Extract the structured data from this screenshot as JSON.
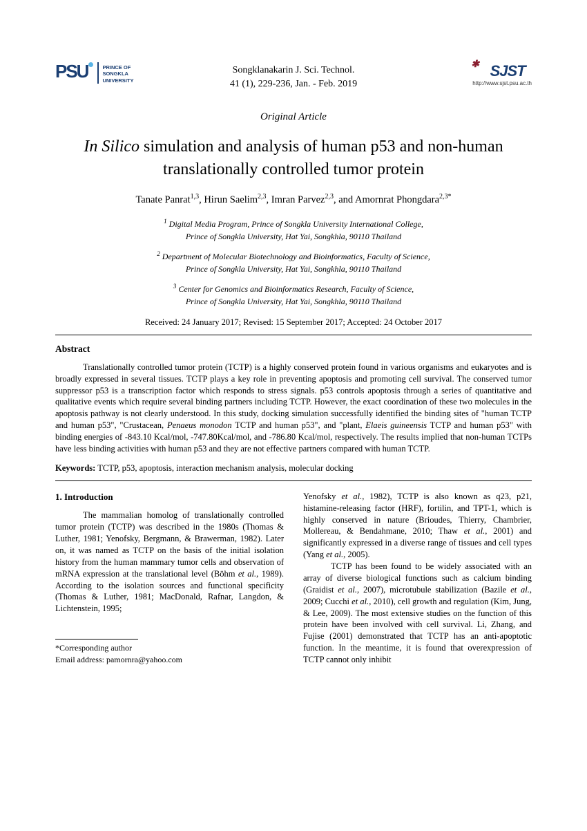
{
  "header": {
    "psu_label_1": "PRINCE OF",
    "psu_label_2": "SONGKLA",
    "psu_label_3": "UNIVERSITY",
    "journal_line1": "Songklanakarin J. Sci. Technol.",
    "journal_line2": "41 (1), 229-236, Jan. - Feb. 2019",
    "sjst_text": "SJST",
    "sjst_url": "http://www.sjst.psu.ac.th"
  },
  "article_type": "Original Article",
  "title_italic": "In Silico",
  "title_rest": " simulation and analysis of human p53 and non-human translationally controlled tumor protein",
  "authors_html": "Tanate Panrat<sup>1,3</sup>, Hirun Saelim<sup>2,3</sup>, Imran Parvez<sup>2,3</sup>, and Amornrat Phongdara<sup>2,3*</sup>",
  "affiliations": [
    {
      "sup": "1",
      "lines": [
        "Digital Media Program, Prince of Songkla University International College,",
        "Prince of Songkla University, Hat Yai, Songkhla, 90110 Thailand"
      ]
    },
    {
      "sup": "2",
      "lines": [
        "Department of Molecular Biotechnology and Bioinformatics, Faculty of Science,",
        "Prince of Songkla University, Hat Yai, Songkhla, 90110 Thailand"
      ]
    },
    {
      "sup": "3",
      "lines": [
        "Center for Genomics and Bioinformatics Research, Faculty of Science,",
        "Prince of Songkla University, Hat Yai, Songkhla, 90110 Thailand"
      ]
    }
  ],
  "dates": "Received: 24 January 2017; Revised: 15 September 2017; Accepted: 24 October 2017",
  "abstract_heading": "Abstract",
  "abstract_text": "Translationally controlled tumor protein (TCTP) is a highly conserved protein found in various organisms and eukaryotes and is broadly expressed in several tissues. TCTP plays a key role in preventing apoptosis and promoting cell survival. The conserved tumor suppressor p53 is a transcription factor which responds to stress signals. p53 controls apoptosis through a series of quantitative and qualitative events which require several binding partners including TCTP. However, the exact coordination of these two molecules in the apoptosis pathway is not clearly understood. In this study, docking simulation successfully identified the binding sites of \"human TCTP and human p53\", \"Crustacean, Penaeus monodon TCTP and human p53\", and \"plant, Elaeis guineensis TCTP and human p53\" with binding energies of -843.10 Kcal/mol, -747.80Kcal/mol, and -786.80 Kcal/mol, respectively. The results implied that non-human TCTPs have less binding activities with human p53 and they are not effective partners compared with human TCTP.",
  "keywords_label": "Keywords:",
  "keywords_text": " TCTP, p53, apoptosis, interaction mechanism analysis, molecular docking",
  "intro_heading": "1. Introduction",
  "intro_col1": "The mammalian homolog of translationally controlled tumor protein (TCTP) was described in the 1980s (Thomas & Luther, 1981; Yenofsky, Bergmann, & Brawerman, 1982). Later on, it was named as TCTP on the basis of the initial isolation history from the human mammary tumor cells and observation of mRNA expression at the translational level (Böhm et al., 1989). According to the isolation sources and functional specificity (Thomas & Luther, 1981; MacDonald, Rafnar, Langdon, & Lichtenstein, 1995;",
  "intro_col2": "Yenofsky et al., 1982), TCTP is also known as q23, p21, histamine-releasing factor (HRF), fortilin, and TPT-1, which is highly conserved in nature (Brioudes, Thierry, Chambrier, Mollereau, & Bendahmane, 2010; Thaw et al., 2001) and significantly expressed in a diverse range of tissues and cell types (Yang et al., 2005).",
  "intro_col2_p2": "TCTP has been found to be widely associated with an array of diverse biological functions such as calcium binding (Graidist et al., 2007), microtubule stabilization (Bazile et al., 2009; Cucchi et al., 2010), cell growth and regulation (Kim, Jung, & Lee, 2009). The most extensive studies on the function of this protein have been involved with cell survival. Li, Zhang, and Fujise (2001) demonstrated that TCTP has an anti-apoptotic function. In the meantime, it is found that overexpression of TCTP cannot only inhibit",
  "corresponding_label": "*Corresponding author",
  "corresponding_email": "Email address: pamornra@yahoo.com"
}
